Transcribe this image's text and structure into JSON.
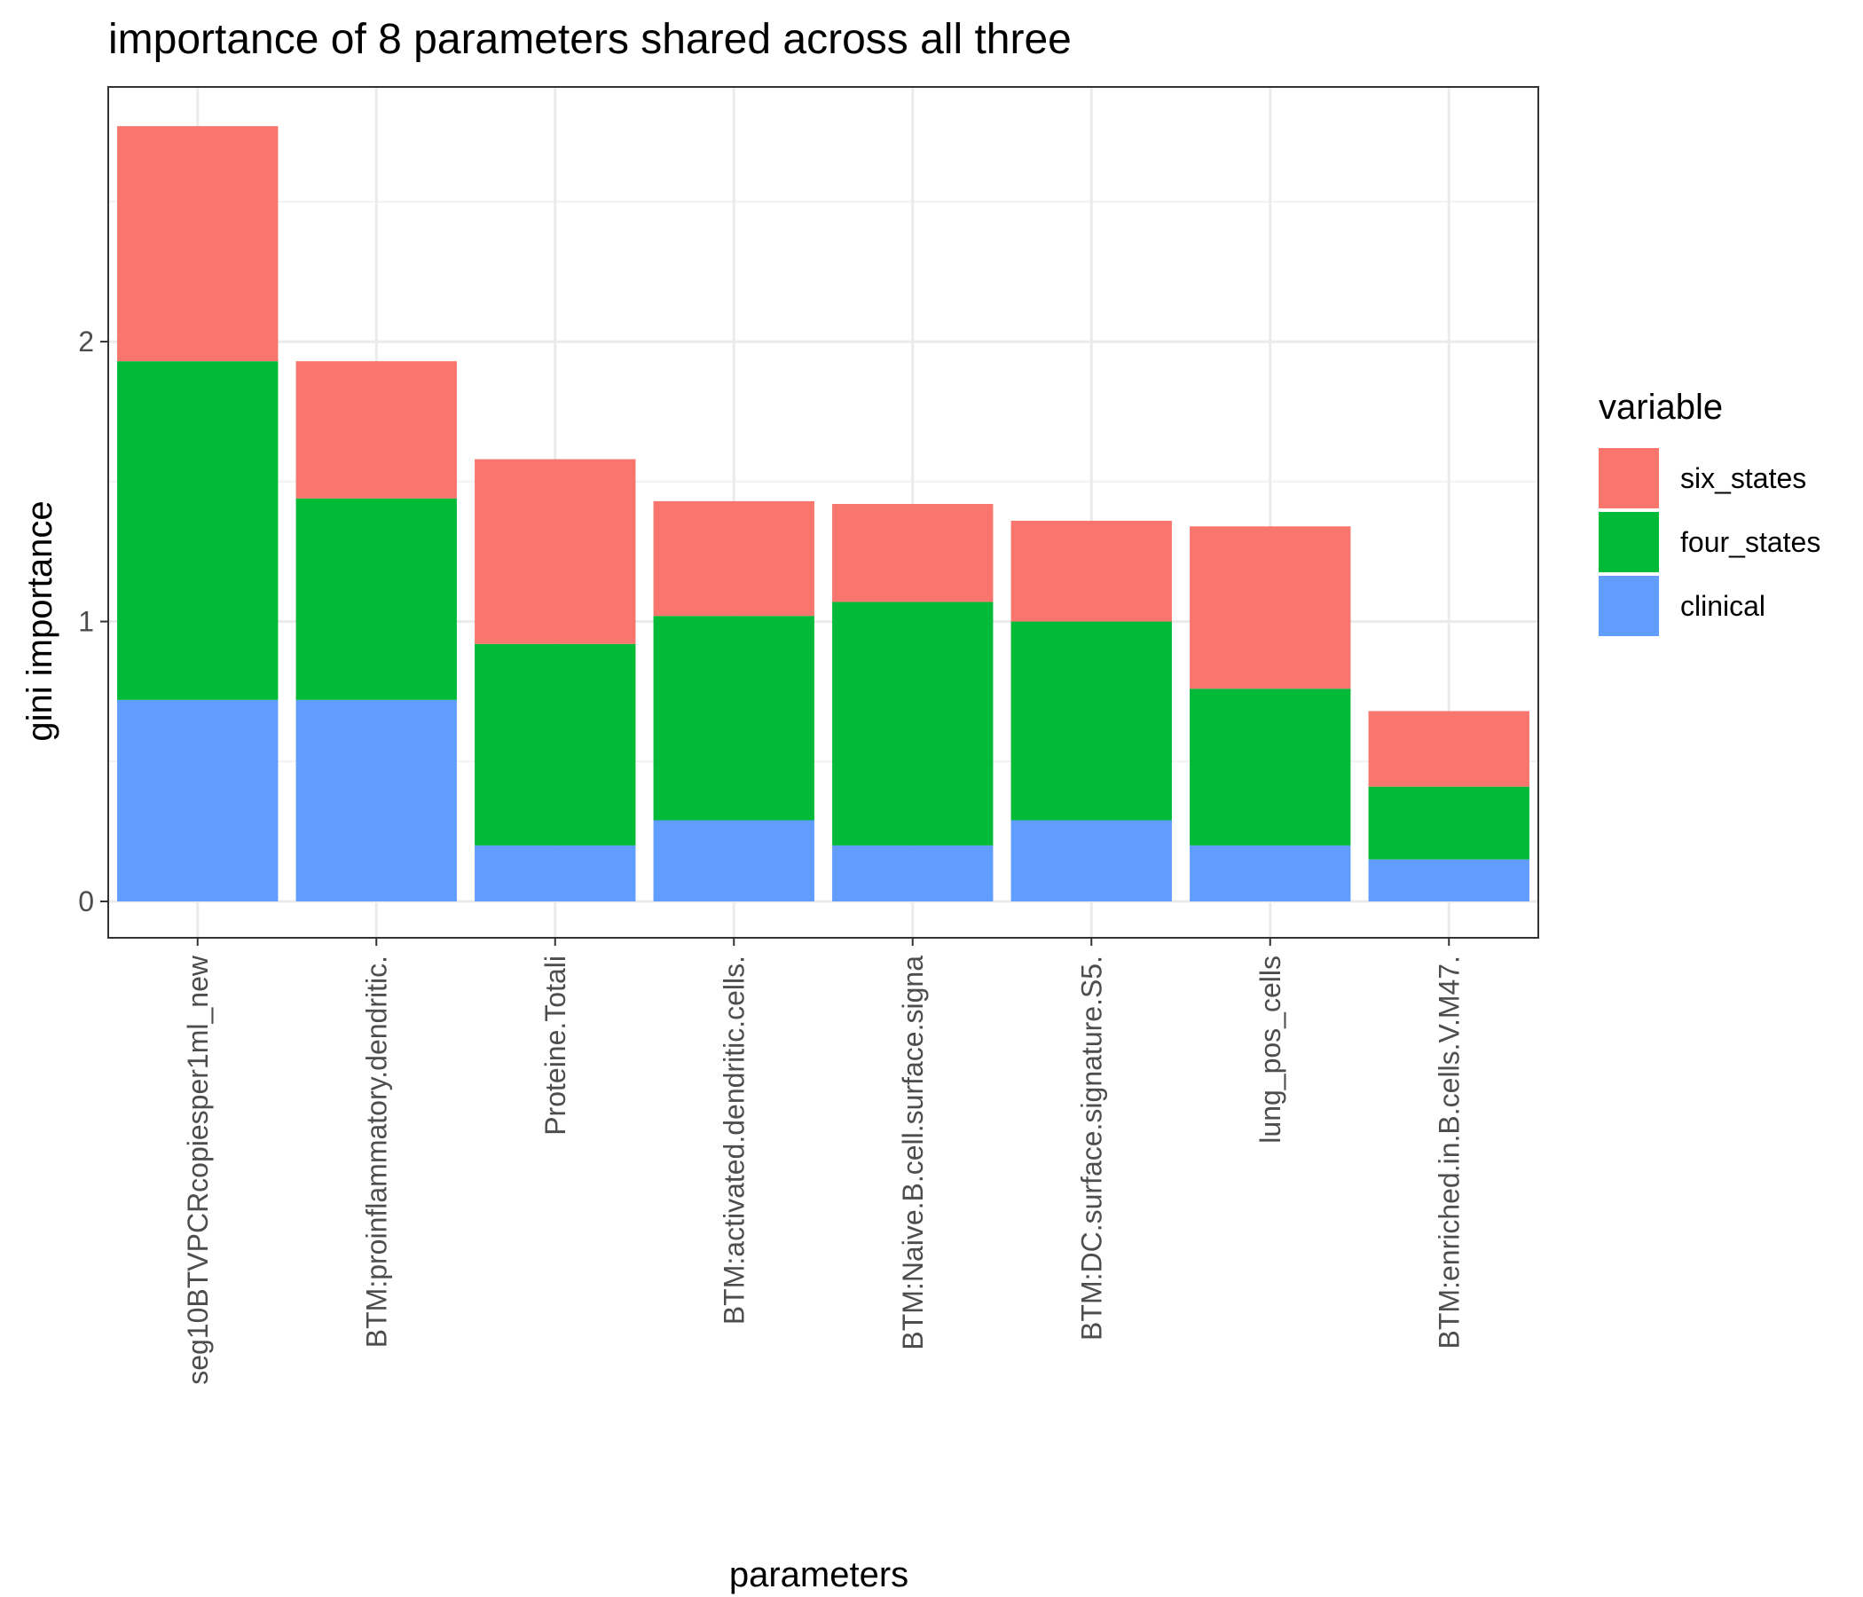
{
  "chart_data": {
    "type": "bar",
    "stacked": true,
    "title": "importance of 8 parameters shared across all three",
    "xlabel": "parameters",
    "ylabel": "gini importance",
    "categories": [
      "seg10BTVPCRcopiesper1ml_new",
      "BTM:proinflammatory.dendritic.",
      "Proteine.Totali",
      "BTM:activated.dendritic.cells.",
      "BTM:Naive.B.cell.surface.signa",
      "BTM:DC.surface.signature.S5.",
      "lung_pos_cells",
      "BTM:enriched.in.B.cells.V.M47."
    ],
    "series": [
      {
        "name": "clinical",
        "color": "#619cff",
        "values": [
          0.72,
          0.72,
          0.2,
          0.29,
          0.2,
          0.29,
          0.2,
          0.15
        ]
      },
      {
        "name": "four_states",
        "color": "#00ba38",
        "values": [
          1.21,
          0.72,
          0.72,
          0.73,
          0.87,
          0.71,
          0.56,
          0.26
        ]
      },
      {
        "name": "six_states",
        "color": "#f8766d",
        "values": [
          0.84,
          0.49,
          0.66,
          0.41,
          0.35,
          0.36,
          0.58,
          0.27
        ]
      }
    ],
    "ylim": [
      -0.13,
      2.91
    ],
    "yticks": [
      0,
      1,
      2
    ],
    "grid": true,
    "legend": {
      "title": "variable",
      "position": "right",
      "order": [
        "six_states",
        "four_states",
        "clinical"
      ]
    }
  }
}
